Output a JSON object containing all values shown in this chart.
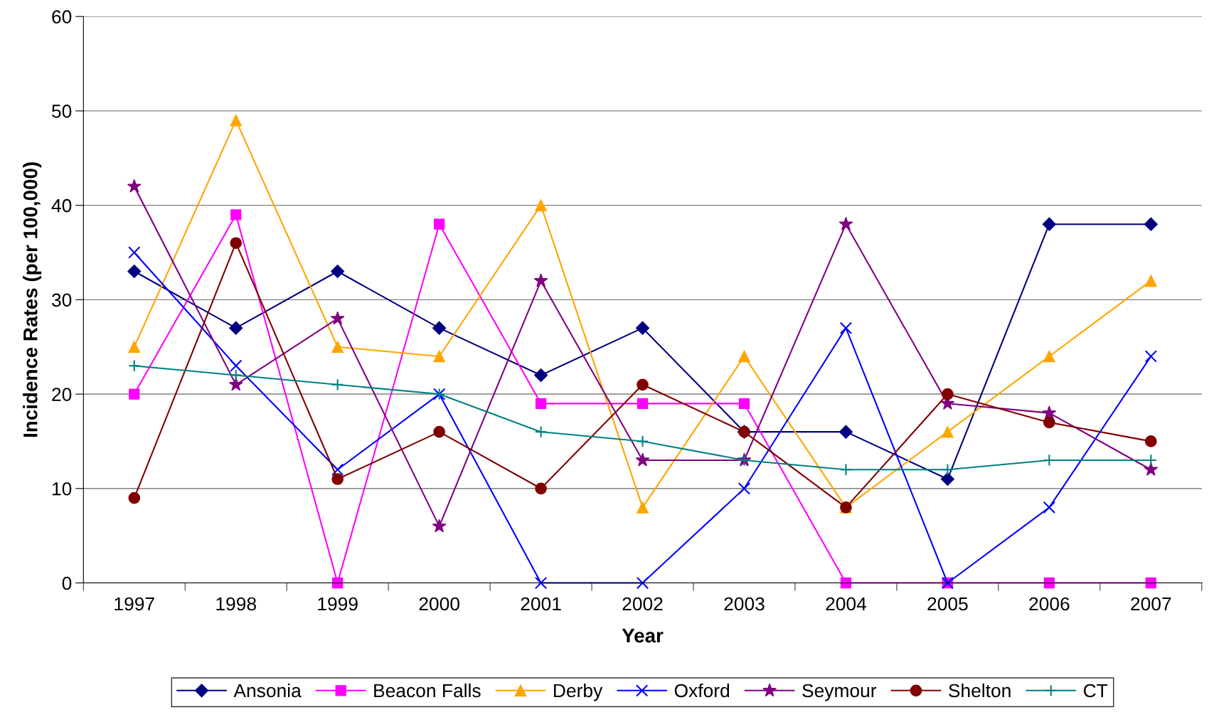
{
  "chart_data": {
    "type": "line",
    "xlabel": "Year",
    "ylabel": "Incidence Rates (per 100,000)",
    "categories": [
      "1997",
      "1998",
      "1999",
      "2000",
      "2001",
      "2002",
      "2003",
      "2004",
      "2005",
      "2006",
      "2007"
    ],
    "ylim": [
      0,
      60
    ],
    "yticks": [
      0,
      10,
      20,
      30,
      40,
      50,
      60
    ],
    "grid": "y",
    "legend": "bottom",
    "line_style": "solid",
    "series": [
      {
        "name": "Ansonia",
        "color": "#000080",
        "marker": "diamond",
        "values": [
          33,
          27,
          33,
          27,
          22,
          27,
          16,
          16,
          11,
          38,
          38
        ]
      },
      {
        "name": "Beacon Falls",
        "color": "#ff00ff",
        "marker": "square",
        "values": [
          20,
          39,
          0,
          38,
          19,
          19,
          19,
          0,
          0,
          0,
          0
        ]
      },
      {
        "name": "Derby",
        "color": "#ffa500",
        "marker": "triangle",
        "values": [
          25,
          49,
          25,
          24,
          40,
          8,
          24,
          8,
          16,
          24,
          32
        ]
      },
      {
        "name": "Oxford",
        "color": "#0000ff",
        "marker": "cross",
        "values": [
          35,
          23,
          12,
          20,
          0,
          0,
          10,
          27,
          0,
          8,
          24
        ]
      },
      {
        "name": "Seymour",
        "color": "#800080",
        "marker": "star",
        "values": [
          42,
          21,
          28,
          6,
          32,
          13,
          13,
          38,
          19,
          18,
          12
        ]
      },
      {
        "name": "Shelton",
        "color": "#800000",
        "marker": "circle",
        "values": [
          9,
          36,
          11,
          16,
          10,
          21,
          16,
          8,
          20,
          17,
          15
        ]
      },
      {
        "name": "CT",
        "color": "#008080",
        "marker": "plus",
        "values": [
          23,
          22,
          21,
          20,
          16,
          15,
          13,
          12,
          12,
          13,
          13
        ]
      }
    ]
  }
}
